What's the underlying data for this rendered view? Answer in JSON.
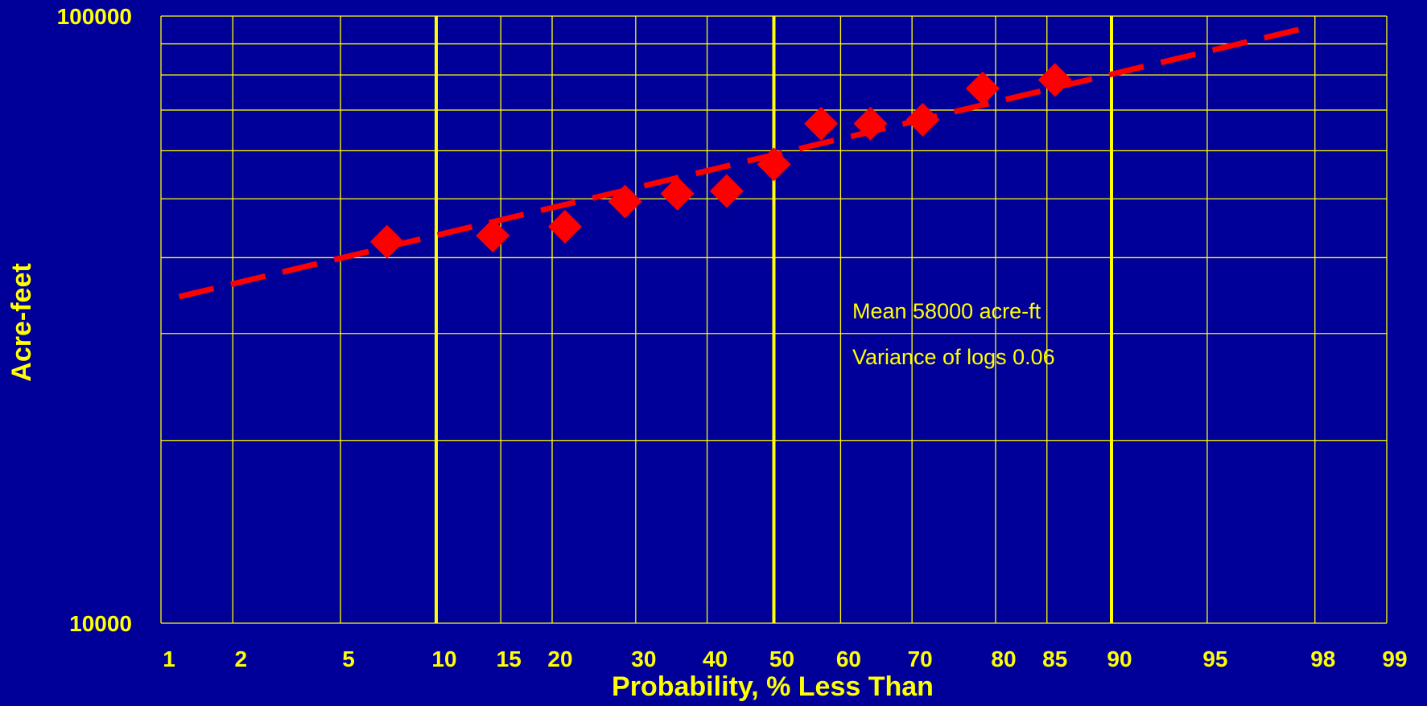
{
  "chart_data": {
    "type": "scatter",
    "xlabel": "Probability, % Less Than",
    "ylabel": "Acre-feet",
    "y_scale": "log",
    "x_scale": "normal-probability",
    "ylim": [
      10000,
      100000
    ],
    "xlim": [
      1,
      99
    ],
    "y_tick_labels": [
      "100000",
      "10000"
    ],
    "x_ticks": [
      1,
      2,
      5,
      10,
      15,
      20,
      30,
      40,
      50,
      60,
      70,
      80,
      85,
      90,
      95,
      98,
      99
    ],
    "x_tick_labels": [
      "1",
      "2",
      "5",
      "10",
      "15",
      "20",
      "30",
      "40",
      "50",
      "60",
      "70",
      "80",
      "85",
      "90",
      "95",
      "98",
      "99"
    ],
    "emphasized_x_gridlines": [
      10,
      50,
      90
    ],
    "grid": true,
    "series": [
      {
        "type": "scatter",
        "marker": "diamond",
        "color": "#FF0000",
        "points": [
          {
            "x": 7.1,
            "y": 42500
          },
          {
            "x": 14.3,
            "y": 43500
          },
          {
            "x": 21.4,
            "y": 45000
          },
          {
            "x": 28.6,
            "y": 49500
          },
          {
            "x": 35.7,
            "y": 51000
          },
          {
            "x": 42.9,
            "y": 51500
          },
          {
            "x": 50.0,
            "y": 57000
          },
          {
            "x": 57.1,
            "y": 66500
          },
          {
            "x": 64.3,
            "y": 66500
          },
          {
            "x": 71.4,
            "y": 67500
          },
          {
            "x": 78.6,
            "y": 76000
          },
          {
            "x": 85.7,
            "y": 78500
          }
        ]
      },
      {
        "type": "line",
        "style": "dashed",
        "color": "#FF0000",
        "points": [
          {
            "x": 1.2,
            "y": 34500
          },
          {
            "x": 97.8,
            "y": 95500
          }
        ]
      }
    ],
    "annotations": [
      "Mean 58000 acre-ft",
      "Variance of logs 0.06"
    ],
    "colors": {
      "background": "#000099",
      "grid": "#FFFF00",
      "text": "#FFFF00",
      "data": "#FF0000"
    }
  }
}
